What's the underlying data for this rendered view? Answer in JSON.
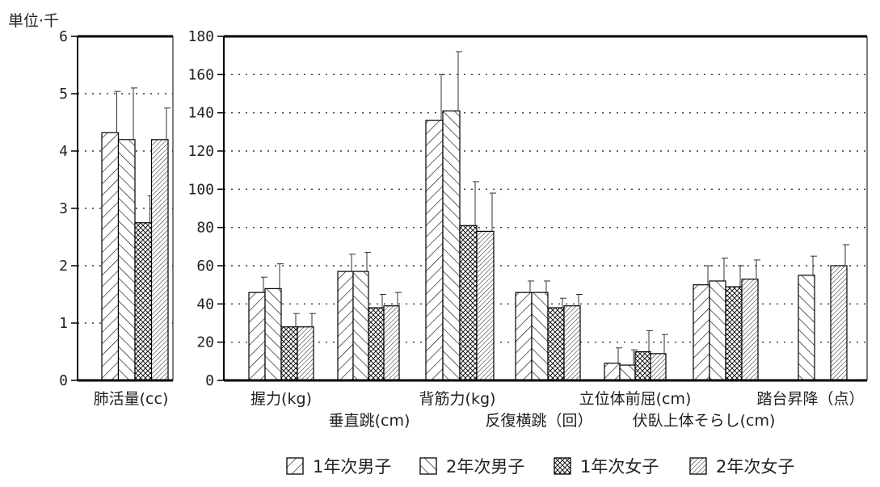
{
  "chart_data": [
    {
      "type": "bar",
      "unit_label": "単位·千",
      "categories": [
        "肺活量(cc)"
      ],
      "ylim": [
        0,
        6
      ],
      "yticks": [
        "0",
        "1",
        "2",
        "3",
        "4",
        "5",
        "6"
      ],
      "grid": true,
      "series": [
        {
          "name": "1年次男子",
          "values": [
            4.32
          ],
          "errors": [
            0.72
          ]
        },
        {
          "name": "2年次男子",
          "values": [
            4.2
          ],
          "errors": [
            0.9
          ]
        },
        {
          "name": "1年次女子",
          "values": [
            2.75
          ],
          "errors": [
            0.47
          ]
        },
        {
          "name": "2年次女子",
          "values": [
            4.2
          ],
          "errors": [
            0.55
          ]
        }
      ]
    },
    {
      "type": "bar",
      "categories": [
        "握力(kg)",
        "垂直跳(cm)",
        "背筋力(kg)",
        "反復横跳（回）",
        "立位体前屈(cm)",
        "伏臥上体そらし(cm)",
        "踏台昇降（点）"
      ],
      "ylim": [
        0,
        180
      ],
      "yticks": [
        "0",
        "20",
        "40",
        "60",
        "80",
        "100",
        "120",
        "140",
        "160",
        "180"
      ],
      "grid": true,
      "series": [
        {
          "name": "1年次男子",
          "values": [
            46,
            57,
            136,
            46,
            9,
            50,
            null
          ],
          "errors": [
            8,
            9,
            24,
            6,
            8,
            10,
            null
          ]
        },
        {
          "name": "2年次男子",
          "values": [
            48,
            57,
            141,
            46,
            8,
            52,
            55
          ],
          "errors": [
            13,
            10,
            31,
            6,
            8,
            12,
            10
          ]
        },
        {
          "name": "1年次女子",
          "values": [
            28,
            38,
            81,
            38,
            15,
            49,
            null
          ],
          "errors": [
            7,
            7,
            23,
            5,
            11,
            11,
            null
          ]
        },
        {
          "name": "2年次女子",
          "values": [
            28,
            39,
            78,
            39,
            14,
            53,
            60
          ],
          "errors": [
            7,
            7,
            20,
            6,
            10,
            10,
            11
          ]
        }
      ]
    }
  ],
  "legend": [
    {
      "label": "1年次男子",
      "pattern": "diag-sparse"
    },
    {
      "label": "2年次男子",
      "pattern": "diag-back"
    },
    {
      "label": "1年次女子",
      "pattern": "crosshatch"
    },
    {
      "label": "2年次女子",
      "pattern": "diag-dense"
    }
  ]
}
